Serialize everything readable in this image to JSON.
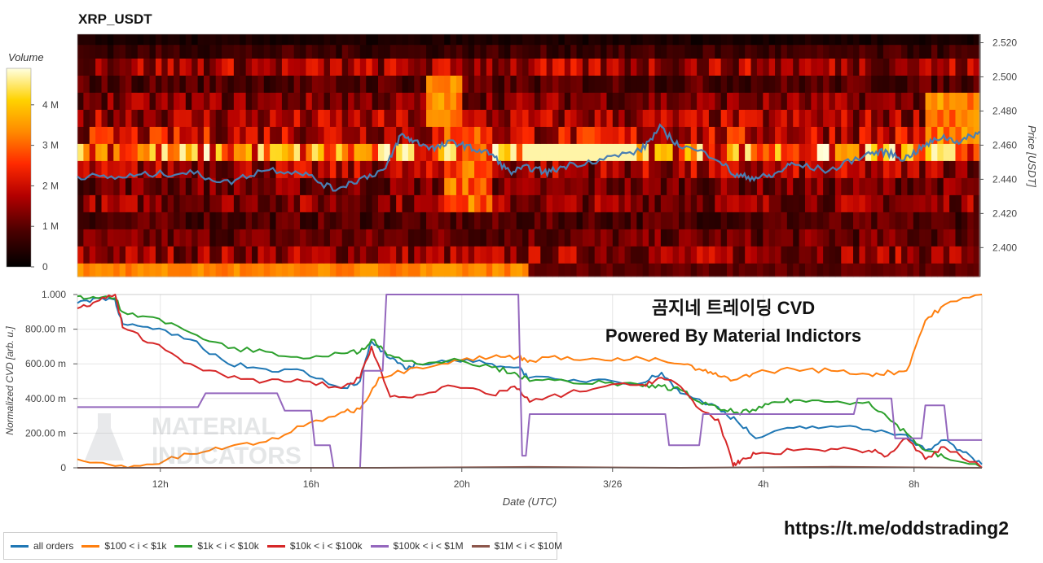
{
  "title": "XRP_USDT",
  "overlay": {
    "line1": "곰지네 트레이딩 CVD",
    "line2": "Powered By Material Indictors"
  },
  "url": "https://t.me/oddstrading2",
  "watermark": {
    "line1": "MATERIAL",
    "line2": "INDICATORS"
  },
  "colorbar": {
    "label": "Volume",
    "ticks": [
      "0",
      "1 M",
      "2 M",
      "3 M",
      "4 M"
    ],
    "tick_values": [
      0,
      1,
      2,
      3,
      4
    ],
    "max": 4.9
  },
  "legend": [
    {
      "label": "all orders",
      "color": "#1f77b4"
    },
    {
      "label": "$100 < i < $1k",
      "color": "#ff7f0e"
    },
    {
      "label": "$1k < i < $10k",
      "color": "#2ca02c"
    },
    {
      "label": "$10k < i < $100k",
      "color": "#d62728"
    },
    {
      "label": "$100k < i < $1M",
      "color": "#9467bd"
    },
    {
      "label": "$1M < i < $10M",
      "color": "#8c564b"
    }
  ],
  "chart_data": [
    {
      "type": "heatmap",
      "ylabel": "Price [USDT]",
      "y_ticks": [
        "2.400",
        "2.420",
        "2.440",
        "2.460",
        "2.480",
        "2.500",
        "2.520"
      ],
      "y_tick_values": [
        2.4,
        2.42,
        2.44,
        2.46,
        2.48,
        2.5,
        2.52
      ],
      "ylim": [
        2.383,
        2.525
      ],
      "price_bands": [
        2.386,
        2.396,
        2.406,
        2.416,
        2.426,
        2.436,
        2.446,
        2.456,
        2.466,
        2.476,
        2.486,
        2.496,
        2.506,
        2.516,
        2.522
      ],
      "band_volume_M": [
        2.0,
        1.5,
        1.1,
        0.9,
        1.4,
        1.2,
        1.6,
        3.2,
        1.9,
        1.6,
        1.3,
        0.9,
        1.6,
        0.7,
        0.3
      ],
      "x_ticks": [
        "12h",
        "16h",
        "20h",
        "3/26",
        "4h",
        "8h"
      ],
      "x_tick_values": [
        2.2,
        6.2,
        10.2,
        14.2,
        18.2,
        22.2
      ],
      "xlim": [
        0,
        24
      ],
      "price_line": {
        "color": "#4a7fb3",
        "t": [
          0,
          1,
          2,
          3,
          4,
          5,
          6,
          6.8,
          7.5,
          8.2,
          8.6,
          9,
          9.5,
          10,
          10.5,
          11,
          11.5,
          12,
          12.5,
          13,
          14,
          15,
          15.5,
          16,
          17,
          17.5,
          18,
          18.5,
          19,
          20,
          21,
          21.5,
          22,
          22.5,
          23,
          23.5,
          24
        ],
        "price": [
          2.442,
          2.441,
          2.443,
          2.444,
          2.438,
          2.446,
          2.444,
          2.434,
          2.44,
          2.446,
          2.466,
          2.462,
          2.458,
          2.462,
          2.458,
          2.455,
          2.444,
          2.447,
          2.444,
          2.448,
          2.452,
          2.457,
          2.47,
          2.46,
          2.453,
          2.442,
          2.441,
          2.442,
          2.449,
          2.445,
          2.455,
          2.456,
          2.452,
          2.459,
          2.465,
          2.462,
          2.468
        ]
      }
    },
    {
      "type": "line",
      "xlabel": "Date (UTC)",
      "ylabel": "Normalized CVD [arb. u.]",
      "y_ticks": [
        "0",
        "200.00 m",
        "400.00 m",
        "600.00 m",
        "800.00 m",
        "1.000"
      ],
      "y_tick_values": [
        0,
        0.2,
        0.4,
        0.6,
        0.8,
        1.0
      ],
      "ylim": [
        0,
        1.0
      ],
      "x_ticks": [
        "12h",
        "16h",
        "20h",
        "3/26",
        "4h",
        "8h"
      ],
      "x_tick_values": [
        2.2,
        6.2,
        10.2,
        14.2,
        18.2,
        22.2
      ],
      "xlim": [
        0,
        24
      ],
      "series": [
        {
          "name": "all orders",
          "color": "#1f77b4",
          "x": [
            0,
            0.5,
            1,
            1.2,
            2,
            3,
            4,
            5,
            6,
            7,
            7.5,
            7.8,
            8.3,
            8.7,
            9,
            10,
            11,
            11.7,
            12,
            13,
            14,
            15,
            15.5,
            16,
            17,
            17.5,
            18,
            19,
            20,
            21,
            22,
            22.5,
            23,
            23.5,
            24
          ],
          "y": [
            0.95,
            0.98,
            0.97,
            0.83,
            0.8,
            0.74,
            0.6,
            0.57,
            0.56,
            0.46,
            0.5,
            0.73,
            0.63,
            0.57,
            0.6,
            0.62,
            0.6,
            0.58,
            0.52,
            0.5,
            0.51,
            0.49,
            0.55,
            0.43,
            0.35,
            0.27,
            0.17,
            0.23,
            0.24,
            0.22,
            0.19,
            0.1,
            0.16,
            0.09,
            0.02
          ]
        },
        {
          "name": "$100 < i < $1k",
          "color": "#ff7f0e",
          "x": [
            0,
            1,
            2,
            3,
            4,
            5,
            6,
            7,
            7.5,
            8,
            9,
            10,
            11,
            11.7,
            12,
            13,
            14,
            15,
            16,
            16.6,
            17,
            17.5,
            18,
            19,
            20,
            21,
            21.6,
            22,
            22.5,
            23,
            24
          ],
          "y": [
            0.05,
            0.01,
            0.02,
            0.08,
            0.12,
            0.15,
            0.24,
            0.32,
            0.34,
            0.52,
            0.58,
            0.62,
            0.64,
            0.64,
            0.62,
            0.64,
            0.62,
            0.63,
            0.6,
            0.56,
            0.53,
            0.51,
            0.55,
            0.57,
            0.56,
            0.54,
            0.55,
            0.56,
            0.85,
            0.94,
            1.0
          ]
        },
        {
          "name": "$1k < i < $10k",
          "color": "#2ca02c",
          "x": [
            0,
            0.5,
            1,
            1.2,
            2,
            3,
            4,
            5,
            6,
            7,
            7.5,
            7.8,
            8.3,
            9,
            10,
            11,
            11.6,
            12,
            13,
            14,
            15,
            15.5,
            16,
            16.5,
            17,
            17.5,
            18,
            18.5,
            19,
            20,
            21,
            21.5,
            22,
            22.5,
            23,
            24
          ],
          "y": [
            0.99,
            0.98,
            0.98,
            0.9,
            0.87,
            0.78,
            0.69,
            0.67,
            0.63,
            0.66,
            0.67,
            0.74,
            0.65,
            0.6,
            0.63,
            0.58,
            0.55,
            0.5,
            0.5,
            0.49,
            0.47,
            0.47,
            0.45,
            0.38,
            0.34,
            0.32,
            0.33,
            0.38,
            0.39,
            0.38,
            0.38,
            0.29,
            0.2,
            0.1,
            0.06,
            0.0
          ]
        },
        {
          "name": "$10k < i < $100k",
          "color": "#d62728",
          "x": [
            0,
            0.5,
            1,
            1.2,
            2,
            3,
            4,
            5,
            6,
            7,
            7.5,
            7.8,
            8.3,
            9,
            10,
            11,
            11.6,
            12,
            13,
            14,
            15,
            15.5,
            16,
            16.5,
            17,
            17.4,
            17.6,
            18,
            19,
            20,
            21,
            21.5,
            22,
            22.5,
            23,
            24
          ],
          "y": [
            0.92,
            0.96,
            1.0,
            0.81,
            0.72,
            0.6,
            0.52,
            0.5,
            0.5,
            0.46,
            0.52,
            0.7,
            0.41,
            0.42,
            0.47,
            0.42,
            0.47,
            0.38,
            0.43,
            0.47,
            0.48,
            0.52,
            0.47,
            0.34,
            0.28,
            0.01,
            0.04,
            0.08,
            0.1,
            0.11,
            0.1,
            0.07,
            0.17,
            0.05,
            0.12,
            0.0
          ]
        },
        {
          "name": "$100k < i < $1M",
          "color": "#9467bd",
          "x": [
            0,
            3.2,
            3.4,
            5.3,
            5.5,
            6.2,
            6.3,
            6.7,
            6.8,
            7.5,
            7.6,
            8.1,
            8.2,
            11.7,
            11.8,
            11.9,
            12,
            15.6,
            15.7,
            16.5,
            16.6,
            20.6,
            20.7,
            21.6,
            21.7,
            22.4,
            22.5,
            23,
            23.1,
            24
          ],
          "y": [
            0.35,
            0.35,
            0.43,
            0.43,
            0.33,
            0.33,
            0.13,
            0.13,
            0.0,
            0.0,
            0.56,
            0.56,
            1.0,
            1.0,
            0.07,
            0.07,
            0.31,
            0.31,
            0.13,
            0.13,
            0.31,
            0.31,
            0.4,
            0.4,
            0.17,
            0.17,
            0.36,
            0.36,
            0.16,
            0.16
          ]
        },
        {
          "name": "$1M < i < $10M",
          "color": "#8c564b",
          "x": [
            0,
            24
          ],
          "y": [
            0,
            0
          ]
        }
      ]
    }
  ]
}
